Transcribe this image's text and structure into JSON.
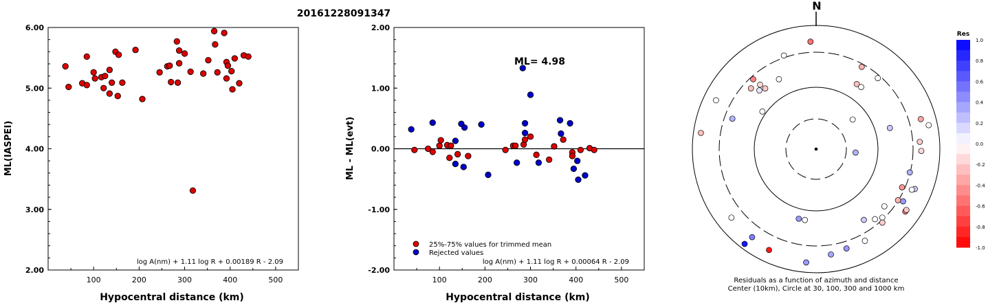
{
  "title": "20161228091347",
  "chart_data": [
    {
      "type": "scatter",
      "xlabel": "Hypocentral distance (km)",
      "ylabel": "ML(IASPEI)",
      "xlim": [
        0,
        550
      ],
      "ylim": [
        2.0,
        6.0
      ],
      "x_ticks": [
        "100",
        "200",
        "300",
        "400",
        "500"
      ],
      "y_ticks": [
        "2.00",
        "3.00",
        "4.00",
        "5.00",
        "6.00"
      ],
      "formula": "log A(nm) + 1.11 log R + 0.00189 R - 2.09",
      "series": [
        {
          "color": "#dd0000",
          "points": [
            [
              38,
              5.36
            ],
            [
              45,
              5.02
            ],
            [
              75,
              5.08
            ],
            [
              85,
              5.52
            ],
            [
              85,
              5.05
            ],
            [
              100,
              5.26
            ],
            [
              103,
              5.16
            ],
            [
              117,
              5.18
            ],
            [
              125,
              5.2
            ],
            [
              122,
              5.0
            ],
            [
              135,
              4.91
            ],
            [
              135,
              5.3
            ],
            [
              140,
              5.09
            ],
            [
              148,
              5.6
            ],
            [
              153,
              4.87
            ],
            [
              155,
              5.55
            ],
            [
              163,
              5.09
            ],
            [
              192,
              5.63
            ],
            [
              207,
              4.82
            ],
            [
              245,
              5.26
            ],
            [
              262,
              5.36
            ],
            [
              267,
              5.37
            ],
            [
              270,
              5.1
            ],
            [
              283,
              5.77
            ],
            [
              285,
              5.09
            ],
            [
              288,
              5.41
            ],
            [
              288,
              5.62
            ],
            [
              300,
              5.57
            ],
            [
              313,
              5.27
            ],
            [
              318,
              3.31
            ],
            [
              341,
              5.24
            ],
            [
              352,
              5.46
            ],
            [
              365,
              5.94
            ],
            [
              367,
              5.72
            ],
            [
              372,
              5.26
            ],
            [
              387,
              5.91
            ],
            [
              392,
              5.43
            ],
            [
              392,
              5.16
            ],
            [
              395,
              5.37
            ],
            [
              403,
              5.28
            ],
            [
              405,
              4.98
            ],
            [
              410,
              5.49
            ],
            [
              420,
              5.08
            ],
            [
              430,
              5.54
            ],
            [
              440,
              5.52
            ]
          ]
        }
      ]
    },
    {
      "type": "scatter",
      "xlabel": "Hypocentral distance (km)",
      "ylabel": "ML - ML(evt)",
      "xlim": [
        0,
        550
      ],
      "ylim": [
        -2.0,
        2.0
      ],
      "x_ticks": [
        "100",
        "200",
        "300",
        "400",
        "500"
      ],
      "y_ticks": [
        "-2.00",
        "-1.00",
        "0.00",
        "1.00",
        "2.00"
      ],
      "annotation": "ML= 4.98",
      "reference_line": 0.0,
      "formula": "log A(nm) + 1.11 log R + 0.00064 R - 2.09",
      "legend": [
        "25%-75% values for trimmed mean",
        "Rejected values"
      ],
      "series": [
        {
          "name": "25%-75% values for trimmed mean",
          "color": "#dd0000",
          "points": [
            [
              45,
              -0.02
            ],
            [
              75,
              0.0
            ],
            [
              85,
              -0.05
            ],
            [
              100,
              0.05
            ],
            [
              103,
              0.14
            ],
            [
              117,
              0.06
            ],
            [
              125,
              0.05
            ],
            [
              122,
              -0.15
            ],
            [
              140,
              -0.09
            ],
            [
              163,
              -0.12
            ],
            [
              245,
              -0.02
            ],
            [
              262,
              0.05
            ],
            [
              267,
              0.05
            ],
            [
              285,
              0.07
            ],
            [
              288,
              0.15
            ],
            [
              300,
              0.2
            ],
            [
              313,
              -0.1
            ],
            [
              341,
              -0.18
            ],
            [
              352,
              0.04
            ],
            [
              372,
              0.15
            ],
            [
              392,
              -0.06
            ],
            [
              392,
              -0.12
            ],
            [
              410,
              -0.02
            ],
            [
              430,
              0.01
            ],
            [
              440,
              -0.02
            ]
          ]
        },
        {
          "name": "Rejected values",
          "color": "#0000cc",
          "points": [
            [
              38,
              0.32
            ],
            [
              85,
              0.43
            ],
            [
              135,
              -0.25
            ],
            [
              135,
              0.13
            ],
            [
              148,
              0.41
            ],
            [
              153,
              -0.3
            ],
            [
              155,
              0.35
            ],
            [
              192,
              0.4
            ],
            [
              207,
              -0.43
            ],
            [
              270,
              -0.23
            ],
            [
              283,
              1.33
            ],
            [
              288,
              0.42
            ],
            [
              288,
              0.26
            ],
            [
              300,
              0.89
            ],
            [
              318,
              -0.23
            ],
            [
              365,
              0.47
            ],
            [
              367,
              0.25
            ],
            [
              387,
              0.42
            ],
            [
              395,
              -0.33
            ],
            [
              403,
              -0.2
            ],
            [
              405,
              -0.51
            ],
            [
              420,
              -0.44
            ]
          ]
        }
      ]
    },
    {
      "type": "scatter",
      "subtype": "polar",
      "north_label": "N",
      "caption_line1": "Residuals as a function of azimuth and distance",
      "caption_line2": "Center (10km), Circle at 30, 100, 300 and 1000 km",
      "colorbar_title": "Res",
      "colorbar_ticks": [
        "1.0",
        "0.8",
        "0.6",
        "0.4",
        "0.2",
        "0.0",
        "-0.2",
        "-0.4",
        "-0.6",
        "-0.8",
        "-1.0"
      ],
      "colorbar_range": [
        -1.0,
        1.0
      ],
      "points": [
        {
          "az": 357,
          "dist": 435,
          "res": -0.55
        },
        {
          "az": 341,
          "dist": 400,
          "res": 0.0
        },
        {
          "az": 318,
          "dist": 380,
          "res": -0.5
        },
        {
          "az": 313,
          "dist": 360,
          "res": -0.25
        },
        {
          "az": 320,
          "dist": 320,
          "res": -0.2
        },
        {
          "az": 332,
          "dist": 320,
          "res": 0.0
        },
        {
          "az": 316,
          "dist": 330,
          "res": 0.1
        },
        {
          "az": 319,
          "dist": 345,
          "res": -0.15
        },
        {
          "az": 305,
          "dist": 265,
          "res": 0.0
        },
        {
          "az": 296,
          "dist": 450,
          "res": 0.0
        },
        {
          "az": 290,
          "dist": 360,
          "res": 0.3
        },
        {
          "az": 278,
          "dist": 470,
          "res": -0.25
        },
        {
          "az": 29,
          "dist": 380,
          "res": -0.3
        },
        {
          "az": 32,
          "dist": 310,
          "res": -0.25
        },
        {
          "az": 36,
          "dist": 310,
          "res": 0.0
        },
        {
          "az": 41,
          "dist": 380,
          "res": 0.0
        },
        {
          "az": 51,
          "dist": 190,
          "res": 0.0
        },
        {
          "az": 74,
          "dist": 310,
          "res": 0.2
        },
        {
          "az": 74,
          "dist": 440,
          "res": -0.35
        },
        {
          "az": 78,
          "dist": 465,
          "res": 0.0
        },
        {
          "az": 86,
          "dist": 420,
          "res": -0.2
        },
        {
          "az": 91,
          "dist": 425,
          "res": -0.15
        },
        {
          "az": 95,
          "dist": 160,
          "res": 0.3
        },
        {
          "az": 104,
          "dist": 390,
          "res": 0.3
        },
        {
          "az": 112,
          "dist": 430,
          "res": 0.2
        },
        {
          "az": 113,
          "dist": 420,
          "res": 0.0
        },
        {
          "az": 114,
          "dist": 380,
          "res": -0.4
        },
        {
          "az": 121,
          "dist": 410,
          "res": 0.4
        },
        {
          "az": 122,
          "dist": 390,
          "res": -0.3
        },
        {
          "az": 125,
          "dist": 440,
          "res": -0.55
        },
        {
          "az": 124,
          "dist": 440,
          "res": -0.2
        },
        {
          "az": 130,
          "dist": 360,
          "res": 0.0
        },
        {
          "az": 136,
          "dist": 385,
          "res": 0.0
        },
        {
          "az": 138,
          "dist": 400,
          "res": -0.2
        },
        {
          "az": 140,
          "dist": 370,
          "res": 0.0
        },
        {
          "az": 146,
          "dist": 345,
          "res": 0.2
        },
        {
          "az": 152,
          "dist": 420,
          "res": 0.0
        },
        {
          "az": 163,
          "dist": 420,
          "res": 0.4
        },
        {
          "az": 172,
          "dist": 430,
          "res": 0.35
        },
        {
          "az": 185,
          "dist": 460,
          "res": 0.4
        },
        {
          "az": 189,
          "dist": 290,
          "res": 0.0
        },
        {
          "az": 194,
          "dist": 290,
          "res": 0.4
        },
        {
          "az": 205,
          "dist": 450,
          "res": -0.9
        },
        {
          "az": 216,
          "dist": 440,
          "res": 0.5
        },
        {
          "az": 217,
          "dist": 480,
          "res": 0.9
        },
        {
          "az": 231,
          "dist": 440,
          "res": 0.0
        }
      ]
    }
  ]
}
